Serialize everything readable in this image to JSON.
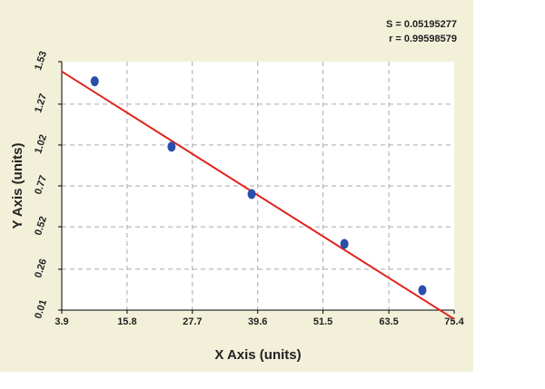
{
  "chart_data": {
    "type": "scatter",
    "annotations": [
      "S = 0.05195277",
      "r = 0.99598579"
    ],
    "xlabel": "X Axis (units)",
    "ylabel": "Y Axis (units)",
    "xlim": [
      3.9,
      75.4
    ],
    "xticks": [
      3.9,
      15.8,
      27.7,
      39.6,
      51.5,
      63.5,
      75.4
    ],
    "ylim": [
      0.01,
      1.53
    ],
    "yticks": [
      0.01,
      0.26,
      0.52,
      0.77,
      1.02,
      1.27,
      1.53
    ],
    "grid": true,
    "points": {
      "color": "#2a4faa",
      "x": [
        9.9,
        23.9,
        38.5,
        55.4,
        69.6
      ],
      "y": [
        1.41,
        1.01,
        0.72,
        0.415,
        0.132
      ]
    },
    "fit": {
      "color": "#e0231c",
      "x": [
        3.9,
        75.4
      ],
      "y": [
        1.47,
        -0.045
      ]
    }
  }
}
